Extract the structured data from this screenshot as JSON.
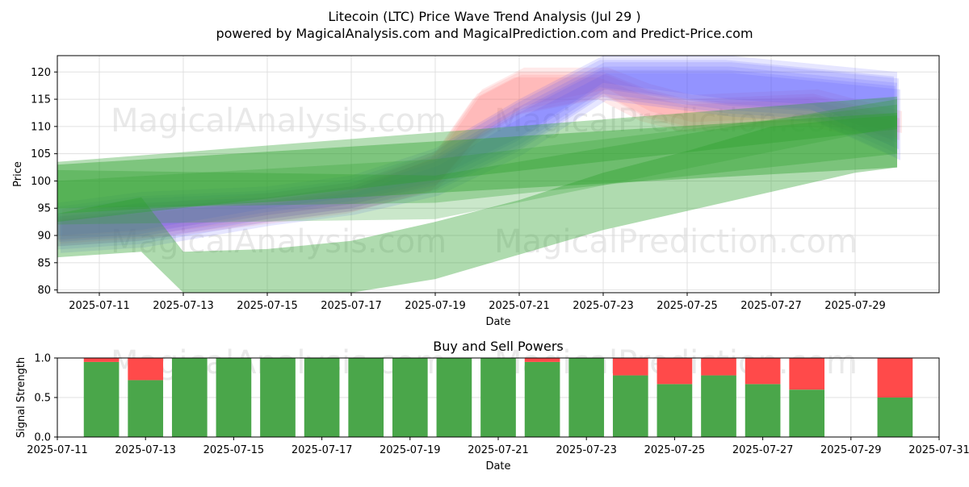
{
  "title_line1": "Litecoin (LTC) Price Wave Trend Analysis (Jul 29 )",
  "title_line2": "powered by MagicalAnalysis.com and MagicalPrediction.com and Predict-Price.com",
  "watermarks": [
    "MagicalAnalysis.com",
    "MagicalPrediction.com"
  ],
  "colors": {
    "green": "#2ca02c",
    "blue": "#4d4dff",
    "red": "#ff6b6b",
    "buy_bar": "#4aa64a",
    "sell_bar": "#ff4a4a",
    "grid": "#e0e0e0"
  },
  "chart_data": [
    {
      "type": "area",
      "ylabel": "Price",
      "xlabel": "Date",
      "ylim": [
        79.5,
        123
      ],
      "xlim": [
        "2025-07-10",
        "2025-07-31"
      ],
      "grid": true,
      "x_ticks": [
        "2025-07-11",
        "2025-07-13",
        "2025-07-15",
        "2025-07-17",
        "2025-07-19",
        "2025-07-21",
        "2025-07-23",
        "2025-07-25",
        "2025-07-27",
        "2025-07-29"
      ],
      "y_ticks": [
        80,
        85,
        90,
        95,
        100,
        105,
        110,
        115,
        120
      ],
      "green_bands": [
        {
          "dates": [
            "2025-07-10",
            "2025-07-30"
          ],
          "upper": [
            103.5,
            115.5
          ],
          "lower": [
            92.5,
            109.5
          ],
          "opacity": 0.35
        },
        {
          "dates": [
            "2025-07-10",
            "2025-07-30"
          ],
          "upper": [
            103,
            112.5
          ],
          "lower": [
            94,
            102.5
          ],
          "opacity": 0.4
        },
        {
          "dates": [
            "2025-07-10",
            "2025-07-19",
            "2025-07-30"
          ],
          "upper": [
            102,
            101,
            115
          ],
          "lower": [
            95,
            96,
            105
          ],
          "opacity": 0.3
        },
        {
          "dates": [
            "2025-07-10",
            "2025-07-19",
            "2025-07-30"
          ],
          "upper": [
            100,
            104,
            114
          ],
          "lower": [
            92,
            93,
            110
          ],
          "opacity": 0.25
        },
        {
          "dates": [
            "2025-07-10",
            "2025-07-12",
            "2025-07-13",
            "2025-07-15",
            "2025-07-17",
            "2025-07-19",
            "2025-07-21",
            "2025-07-23",
            "2025-07-25",
            "2025-07-27",
            "2025-07-29",
            "2025-07-30"
          ],
          "upper": [
            94,
            97,
            87,
            87.5,
            89,
            92.5,
            96.5,
            101.5,
            105.5,
            110,
            111.5,
            112
          ],
          "lower": [
            86,
            87,
            79.5,
            79.5,
            79.5,
            82,
            86.5,
            91,
            94.5,
            98,
            101.5,
            102.5
          ],
          "opacity": 0.38
        }
      ],
      "blue_band": {
        "dates": [
          "2025-07-10",
          "2025-07-12",
          "2025-07-15",
          "2025-07-17",
          "2025-07-19",
          "2025-07-21",
          "2025-07-23",
          "2025-07-26",
          "2025-07-28",
          "2025-07-30"
        ],
        "upper": [
          94,
          96,
          97,
          99,
          104,
          113,
          121,
          121,
          119.5,
          118
        ],
        "lower": [
          88,
          89,
          93,
          95,
          98.5,
          106,
          116,
          113,
          112,
          105
        ]
      },
      "red_band": {
        "dates": [
          "2025-07-10",
          "2025-07-12",
          "2025-07-15",
          "2025-07-17",
          "2025-07-19",
          "2025-07-20",
          "2025-07-21",
          "2025-07-23",
          "2025-07-24",
          "2025-07-25",
          "2025-07-28",
          "2025-07-30"
        ],
        "upper": [
          94,
          95,
          97,
          99,
          105,
          116,
          120,
          120,
          117,
          115,
          116,
          112
        ],
        "lower": [
          89,
          90,
          93,
          95,
          99,
          108,
          113,
          116,
          112,
          110,
          111,
          108
        ]
      }
    },
    {
      "type": "bar",
      "title": "Buy and Sell Powers",
      "ylabel": "Signal Strength",
      "xlabel": "Date",
      "ylim": [
        0,
        1
      ],
      "xlim": [
        "2025-07-11",
        "2025-07-31"
      ],
      "grid": true,
      "x_ticks": [
        "2025-07-11",
        "2025-07-13",
        "2025-07-15",
        "2025-07-17",
        "2025-07-19",
        "2025-07-21",
        "2025-07-23",
        "2025-07-25",
        "2025-07-27",
        "2025-07-29",
        "2025-07-31"
      ],
      "y_ticks": [
        0.0,
        0.5,
        1.0
      ],
      "categories": [
        "2025-07-12",
        "2025-07-13",
        "2025-07-14",
        "2025-07-15",
        "2025-07-16",
        "2025-07-17",
        "2025-07-18",
        "2025-07-19",
        "2025-07-20",
        "2025-07-21",
        "2025-07-22",
        "2025-07-23",
        "2025-07-24",
        "2025-07-25",
        "2025-07-26",
        "2025-07-27",
        "2025-07-28",
        "2025-07-30"
      ],
      "series": [
        {
          "values": [
            0.95,
            0.72,
            1.0,
            1.0,
            1.0,
            1.0,
            1.0,
            1.0,
            1.0,
            1.0,
            0.95,
            1.0,
            0.78,
            0.67,
            0.78,
            0.67,
            0.6,
            0.5
          ]
        },
        {
          "values": [
            0.05,
            0.28,
            0.0,
            0.0,
            0.0,
            0.0,
            0.0,
            0.0,
            0.0,
            0.0,
            0.05,
            0.0,
            0.22,
            0.33,
            0.22,
            0.33,
            0.4,
            0.5
          ]
        }
      ]
    }
  ]
}
